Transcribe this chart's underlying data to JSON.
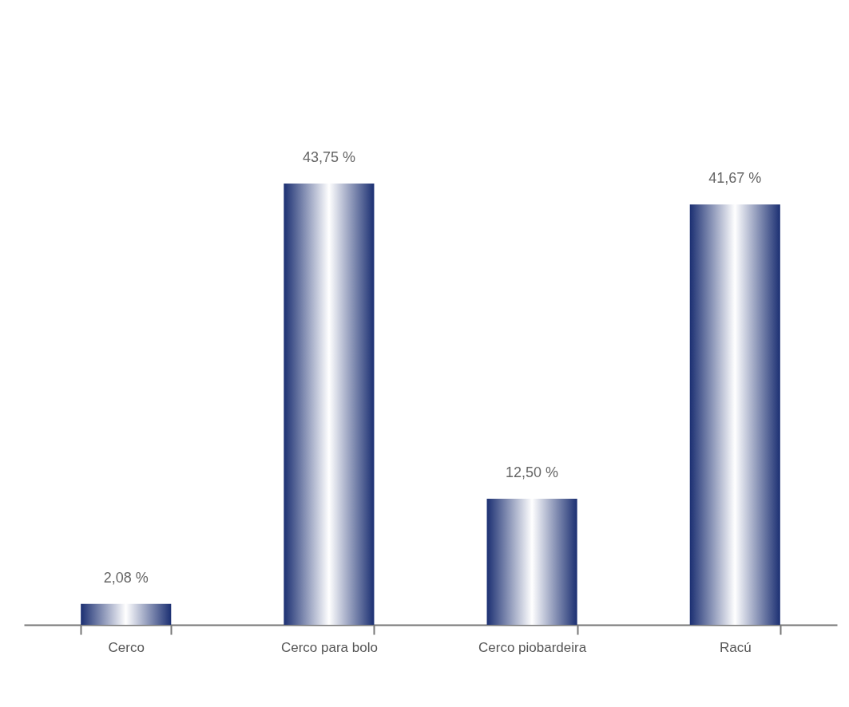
{
  "chart_data": {
    "type": "bar",
    "categories": [
      "Cerco",
      "Cerco para bolo",
      "Cerco piobardeira",
      "Racú"
    ],
    "values": [
      2.08,
      43.75,
      12.5,
      41.67
    ],
    "value_labels": [
      "2,08 %",
      "43,75 %",
      "12,50 %",
      "41,67 %"
    ],
    "color": "#1b2f72",
    "tick_labels": "x",
    "grid": false
  }
}
